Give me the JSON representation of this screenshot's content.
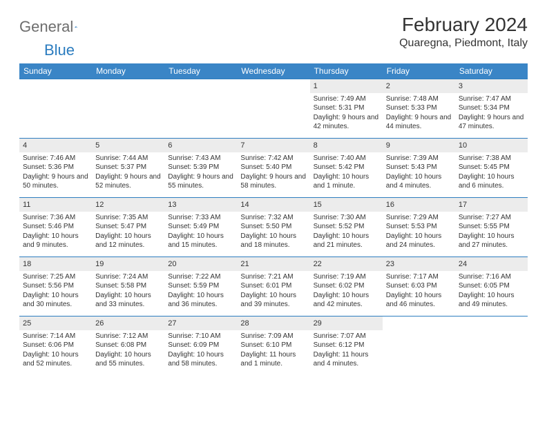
{
  "logo": {
    "text1": "General",
    "text2": "Blue"
  },
  "title": "February 2024",
  "location": "Quaregna, Piedmont, Italy",
  "colors": {
    "header_bg": "#3a85c6",
    "border": "#2b7cbf",
    "shade": "#ececec",
    "text": "#333333",
    "logo_gray": "#6d6d6d"
  },
  "dayHeaders": [
    "Sunday",
    "Monday",
    "Tuesday",
    "Wednesday",
    "Thursday",
    "Friday",
    "Saturday"
  ],
  "weeks": [
    [
      null,
      null,
      null,
      null,
      {
        "n": "1",
        "sr": "7:49 AM",
        "ss": "5:31 PM",
        "dl": "9 hours and 42 minutes."
      },
      {
        "n": "2",
        "sr": "7:48 AM",
        "ss": "5:33 PM",
        "dl": "9 hours and 44 minutes."
      },
      {
        "n": "3",
        "sr": "7:47 AM",
        "ss": "5:34 PM",
        "dl": "9 hours and 47 minutes."
      }
    ],
    [
      {
        "n": "4",
        "sr": "7:46 AM",
        "ss": "5:36 PM",
        "dl": "9 hours and 50 minutes."
      },
      {
        "n": "5",
        "sr": "7:44 AM",
        "ss": "5:37 PM",
        "dl": "9 hours and 52 minutes."
      },
      {
        "n": "6",
        "sr": "7:43 AM",
        "ss": "5:39 PM",
        "dl": "9 hours and 55 minutes."
      },
      {
        "n": "7",
        "sr": "7:42 AM",
        "ss": "5:40 PM",
        "dl": "9 hours and 58 minutes."
      },
      {
        "n": "8",
        "sr": "7:40 AM",
        "ss": "5:42 PM",
        "dl": "10 hours and 1 minute."
      },
      {
        "n": "9",
        "sr": "7:39 AM",
        "ss": "5:43 PM",
        "dl": "10 hours and 4 minutes."
      },
      {
        "n": "10",
        "sr": "7:38 AM",
        "ss": "5:45 PM",
        "dl": "10 hours and 6 minutes."
      }
    ],
    [
      {
        "n": "11",
        "sr": "7:36 AM",
        "ss": "5:46 PM",
        "dl": "10 hours and 9 minutes."
      },
      {
        "n": "12",
        "sr": "7:35 AM",
        "ss": "5:47 PM",
        "dl": "10 hours and 12 minutes."
      },
      {
        "n": "13",
        "sr": "7:33 AM",
        "ss": "5:49 PM",
        "dl": "10 hours and 15 minutes."
      },
      {
        "n": "14",
        "sr": "7:32 AM",
        "ss": "5:50 PM",
        "dl": "10 hours and 18 minutes."
      },
      {
        "n": "15",
        "sr": "7:30 AM",
        "ss": "5:52 PM",
        "dl": "10 hours and 21 minutes."
      },
      {
        "n": "16",
        "sr": "7:29 AM",
        "ss": "5:53 PM",
        "dl": "10 hours and 24 minutes."
      },
      {
        "n": "17",
        "sr": "7:27 AM",
        "ss": "5:55 PM",
        "dl": "10 hours and 27 minutes."
      }
    ],
    [
      {
        "n": "18",
        "sr": "7:25 AM",
        "ss": "5:56 PM",
        "dl": "10 hours and 30 minutes."
      },
      {
        "n": "19",
        "sr": "7:24 AM",
        "ss": "5:58 PM",
        "dl": "10 hours and 33 minutes."
      },
      {
        "n": "20",
        "sr": "7:22 AM",
        "ss": "5:59 PM",
        "dl": "10 hours and 36 minutes."
      },
      {
        "n": "21",
        "sr": "7:21 AM",
        "ss": "6:01 PM",
        "dl": "10 hours and 39 minutes."
      },
      {
        "n": "22",
        "sr": "7:19 AM",
        "ss": "6:02 PM",
        "dl": "10 hours and 42 minutes."
      },
      {
        "n": "23",
        "sr": "7:17 AM",
        "ss": "6:03 PM",
        "dl": "10 hours and 46 minutes."
      },
      {
        "n": "24",
        "sr": "7:16 AM",
        "ss": "6:05 PM",
        "dl": "10 hours and 49 minutes."
      }
    ],
    [
      {
        "n": "25",
        "sr": "7:14 AM",
        "ss": "6:06 PM",
        "dl": "10 hours and 52 minutes."
      },
      {
        "n": "26",
        "sr": "7:12 AM",
        "ss": "6:08 PM",
        "dl": "10 hours and 55 minutes."
      },
      {
        "n": "27",
        "sr": "7:10 AM",
        "ss": "6:09 PM",
        "dl": "10 hours and 58 minutes."
      },
      {
        "n": "28",
        "sr": "7:09 AM",
        "ss": "6:10 PM",
        "dl": "11 hours and 1 minute."
      },
      {
        "n": "29",
        "sr": "7:07 AM",
        "ss": "6:12 PM",
        "dl": "11 hours and 4 minutes."
      },
      null,
      null
    ]
  ],
  "labels": {
    "sunrise": "Sunrise: ",
    "sunset": "Sunset: ",
    "daylight": "Daylight: "
  }
}
